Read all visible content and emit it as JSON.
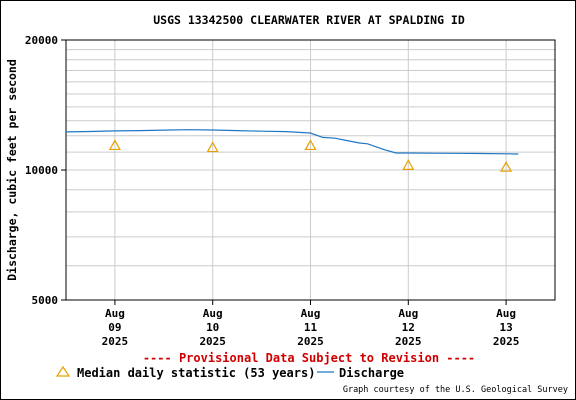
{
  "chart_data": {
    "type": "line",
    "title": "USGS 13342500 CLEARWATER RIVER AT SPALDING ID",
    "ylabel": "Discharge, cubic feet per second",
    "y_scale": "log",
    "ylim": [
      5000,
      20000
    ],
    "y_ticks": [
      {
        "value": 5000,
        "label": "5000"
      },
      {
        "value": 10000,
        "label": "10000"
      },
      {
        "value": 20000,
        "label": "20000"
      }
    ],
    "x_range": [
      "2025-08-08T12:00",
      "2025-08-13T12:00"
    ],
    "x_ticks": [
      {
        "date": "2025-08-09",
        "lines": [
          "Aug",
          "09",
          "2025"
        ]
      },
      {
        "date": "2025-08-10",
        "lines": [
          "Aug",
          "10",
          "2025"
        ]
      },
      {
        "date": "2025-08-11",
        "lines": [
          "Aug",
          "11",
          "2025"
        ]
      },
      {
        "date": "2025-08-12",
        "lines": [
          "Aug",
          "12",
          "2025"
        ]
      },
      {
        "date": "2025-08-13",
        "lines": [
          "Aug",
          "13",
          "2025"
        ]
      }
    ],
    "grid": true,
    "series": [
      {
        "name": "Discharge",
        "color": "#1f77c4",
        "points": [
          [
            "2025-08-08T12:00",
            12250
          ],
          [
            "2025-08-08T18:00",
            12280
          ],
          [
            "2025-08-09T00:00",
            12320
          ],
          [
            "2025-08-09T06:00",
            12340
          ],
          [
            "2025-08-09T12:00",
            12370
          ],
          [
            "2025-08-09T18:00",
            12400
          ],
          [
            "2025-08-10T00:00",
            12380
          ],
          [
            "2025-08-10T06:00",
            12340
          ],
          [
            "2025-08-10T12:00",
            12300
          ],
          [
            "2025-08-10T18:00",
            12270
          ],
          [
            "2025-08-11T00:00",
            12180
          ],
          [
            "2025-08-11T03:00",
            11900
          ],
          [
            "2025-08-11T06:00",
            11850
          ],
          [
            "2025-08-11T09:00",
            11700
          ],
          [
            "2025-08-11T12:00",
            11550
          ],
          [
            "2025-08-11T14:00",
            11500
          ],
          [
            "2025-08-11T18:00",
            11150
          ],
          [
            "2025-08-11T21:00",
            10950
          ],
          [
            "2025-08-12T00:00",
            10950
          ],
          [
            "2025-08-12T06:00",
            10940
          ],
          [
            "2025-08-12T12:00",
            10930
          ],
          [
            "2025-08-12T18:00",
            10920
          ],
          [
            "2025-08-13T00:00",
            10900
          ],
          [
            "2025-08-13T03:00",
            10890
          ]
        ]
      },
      {
        "name": "Median daily statistic (53 years)",
        "color": "#e8a000",
        "marker": "triangle",
        "points": [
          [
            "2025-08-09T00:00",
            11400
          ],
          [
            "2025-08-10T00:00",
            11270
          ],
          [
            "2025-08-11T00:00",
            11400
          ],
          [
            "2025-08-12T00:00",
            10250
          ],
          [
            "2025-08-13T00:00",
            10150
          ]
        ]
      }
    ]
  },
  "notice": "---- Provisional Data Subject to Revision ----",
  "legend": {
    "median_label": "Median daily statistic (53 years)",
    "discharge_label": "Discharge"
  },
  "credit": "Graph courtesy of the U.S. Geological Survey"
}
